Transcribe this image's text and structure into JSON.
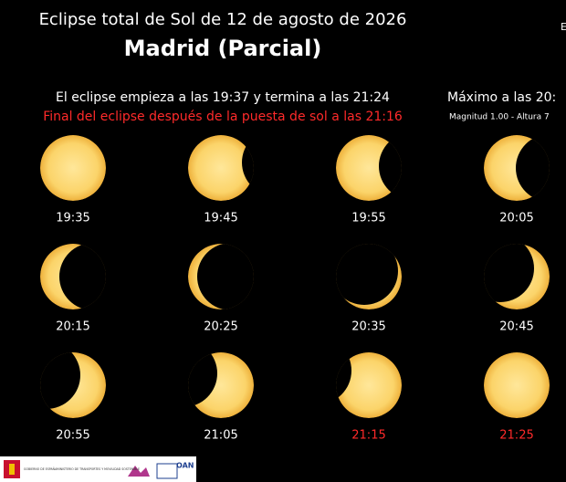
{
  "header": {
    "title": "Eclipse total de Sol de 12 de agosto de 2026",
    "location": "Madrid (Parcial)",
    "corner": "E"
  },
  "info": {
    "times": "El eclipse empieza a las 19:37 y termina a las 21:24",
    "warning": "Final del eclipse después de la puesta de sol a las 21:16",
    "maximum": "Máximo a las 20:",
    "magnitude": "Magnitud 1.00 - Altura 7"
  },
  "frames": [
    {
      "time": "19:35",
      "color": "#ffffff"
    },
    {
      "time": "19:45",
      "color": "#ffffff"
    },
    {
      "time": "19:55",
      "color": "#ffffff"
    },
    {
      "time": "20:05",
      "color": "#ffffff"
    },
    {
      "time": "20:15",
      "color": "#ffffff"
    },
    {
      "time": "20:25",
      "color": "#ffffff"
    },
    {
      "time": "20:35",
      "color": "#ffffff"
    },
    {
      "time": "20:45",
      "color": "#ffffff"
    },
    {
      "time": "20:55",
      "color": "#ffffff"
    },
    {
      "time": "21:05",
      "color": "#ffffff"
    },
    {
      "time": "21:15",
      "color": "#ff2a2a"
    },
    {
      "time": "21:25",
      "color": "#ff2a2a"
    }
  ],
  "footer": {
    "logos": [
      "GOBIERNO DE ESPAÑA",
      "MINISTERIO DE TRANSPORTES Y MOVILIDAD SOSTENIBLE",
      "OAN"
    ]
  }
}
